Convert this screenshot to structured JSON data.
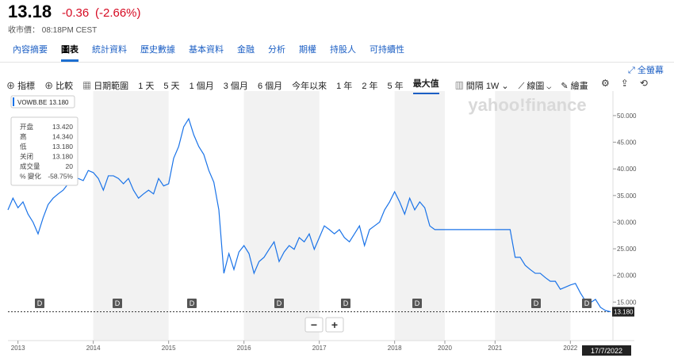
{
  "header": {
    "price": "13.18",
    "change": "-0.36",
    "change_percent": "(-2.66%)",
    "market_time": "收市價： 08:18PM CEST"
  },
  "tabs": [
    "內容摘要",
    "圖表",
    "統計資料",
    "歷史數據",
    "基本資料",
    "金融",
    "分析",
    "期權",
    "持股人",
    "可持續性"
  ],
  "fullscreen": "全螢幕",
  "toolbar": {
    "left": [
      "指標",
      "比較"
    ],
    "date_range": "日期範圍",
    "ranges": [
      "1 天",
      "5 天",
      "1 個月",
      "3 個月",
      "6 個月",
      "今年以來",
      "1 年",
      "2 年",
      "5 年",
      "最大值"
    ],
    "interval": "間隔",
    "interval_value": "1W",
    "chart_type": "線圖",
    "draw": "繪畫"
  },
  "watermark": "yahoo!finance",
  "quote_panel": [
    {
      "label": "开盘",
      "value": "13.420"
    },
    {
      "label": "高",
      "value": "14.340"
    },
    {
      "label": "低",
      "value": "13.180"
    },
    {
      "label": "关闭",
      "value": "13.180"
    },
    {
      "label": "成交量",
      "value": "20"
    },
    {
      "label": "% 變化",
      "value": "-58.75%"
    }
  ],
  "legend_value": "13.180",
  "dividend_markers": [
    "D",
    "D",
    "D",
    "D",
    "D",
    "D",
    "D",
    "D"
  ],
  "zoom": [
    "−",
    "+"
  ],
  "cursor_date": "17/7/2022",
  "chart_data": {
    "type": "line",
    "categories": [
      null,
      null,
      "2013",
      null,
      null,
      null,
      null,
      null,
      null,
      null,
      null,
      null,
      null,
      null,
      null,
      null,
      null,
      "2014",
      null,
      null,
      null,
      null,
      null,
      null,
      null,
      null,
      null,
      null,
      null,
      null,
      null,
      null,
      "2015",
      null,
      null,
      null,
      null,
      null,
      null,
      null,
      null,
      null,
      null,
      null,
      null,
      null,
      null,
      "2016",
      null,
      null,
      null,
      null,
      null,
      null,
      null,
      null,
      null,
      null,
      null,
      null,
      null,
      null,
      "2017",
      null,
      null,
      null,
      null,
      null,
      null,
      null,
      null,
      null,
      null,
      null,
      null,
      null,
      null,
      "2018",
      null,
      null,
      null,
      null,
      null,
      null,
      null,
      null,
      null,
      "2020",
      null,
      null,
      null,
      null,
      null,
      null,
      null,
      null,
      null,
      "2021",
      null,
      null,
      null,
      null,
      null,
      null,
      null,
      null,
      null,
      null,
      null,
      null,
      null,
      null,
      "2022",
      null,
      null,
      null,
      null,
      null,
      null,
      null,
      null
    ],
    "series": [
      {
        "name": "VOWB.BE",
        "color": "#1a73e8",
        "values": [
          32.3,
          34.5,
          32.7,
          33.8,
          31.5,
          30,
          27.8,
          30.8,
          33.3,
          34.5,
          35.3,
          36,
          37.2,
          37.5,
          38.2,
          37.8,
          39.7,
          39.3,
          38.2,
          36,
          38.7,
          38.7,
          38.2,
          37.2,
          38.2,
          36,
          34.5,
          35.3,
          36,
          35.3,
          38.2,
          36.8,
          37.2,
          42,
          44.2,
          47.9,
          49.4,
          46.4,
          44.2,
          42.7,
          39.7,
          37.5,
          32.3,
          20.4,
          24.1,
          21.1,
          24.4,
          25.6,
          24.1,
          20.4,
          22.6,
          23.4,
          24.9,
          26.3,
          22.6,
          24.4,
          25.6,
          24.9,
          27.1,
          26.3,
          27.8,
          24.9,
          27.1,
          29.3,
          28.6,
          27.8,
          28.6,
          27.1,
          26.3,
          27.8,
          29.3,
          25.6,
          28.6,
          29.3,
          30,
          32.3,
          33.8,
          35.7,
          33.8,
          31.5,
          34.5,
          32.3,
          33.8,
          32.7,
          29.3,
          28.6,
          28.6,
          28.6,
          28.6,
          28.6,
          28.6,
          28.6,
          28.6,
          28.6,
          28.6,
          28.6,
          28.6,
          28.6,
          28.6,
          28.6,
          28.6,
          23.4,
          23.4,
          21.9,
          21.1,
          20.4,
          20.4,
          19.6,
          18.9,
          18.9,
          17.4,
          17.8,
          18.2,
          18.5,
          16.7,
          15.2,
          14.9,
          15.5,
          14,
          13.4,
          13.18
        ]
      }
    ],
    "ylim": [
      10,
      54.6
    ],
    "yticks": [
      {
        "value": 15,
        "label": "15.000"
      },
      {
        "value": 20,
        "label": "20.000"
      },
      {
        "value": 25,
        "label": "25.000"
      },
      {
        "value": 30,
        "label": "30.000"
      },
      {
        "value": 35,
        "label": "35.000"
      },
      {
        "value": 40,
        "label": "40.000"
      },
      {
        "value": 45,
        "label": "45.000"
      },
      {
        "value": 50,
        "label": "50.000"
      }
    ],
    "current_price": {
      "value": 13.18,
      "label": "13.180"
    }
  }
}
